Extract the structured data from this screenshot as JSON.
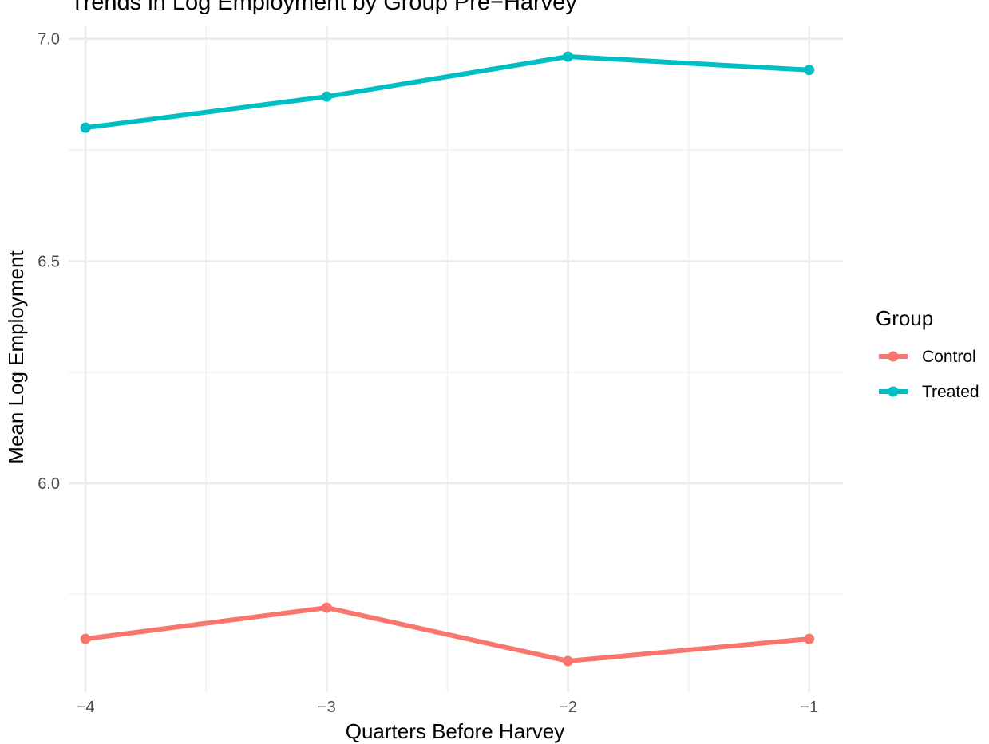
{
  "chart_data": {
    "type": "line",
    "title": "Trends in Log Employment by Group Pre−Harvey",
    "xlabel": "Quarters Before Harvey",
    "ylabel": "Mean Log Employment",
    "x": [
      -4,
      -3,
      -2,
      -1
    ],
    "x_tick_labels": [
      "−4",
      "−3",
      "−2",
      "−1"
    ],
    "y_ticks": [
      6.0,
      6.5,
      7.0
    ],
    "y_tick_labels": [
      "6.0",
      "6.5",
      "7.0"
    ],
    "xlim": [
      -4.07,
      -0.86
    ],
    "ylim": [
      5.53,
      7.03
    ],
    "grid": true,
    "legend": {
      "title": "Group",
      "position": "right"
    },
    "series": [
      {
        "name": "Control",
        "color": "#F8766D",
        "values": [
          5.65,
          5.72,
          5.6,
          5.65
        ]
      },
      {
        "name": "Treated",
        "color": "#00BFC4",
        "values": [
          6.8,
          6.87,
          6.96,
          6.93
        ]
      }
    ]
  }
}
